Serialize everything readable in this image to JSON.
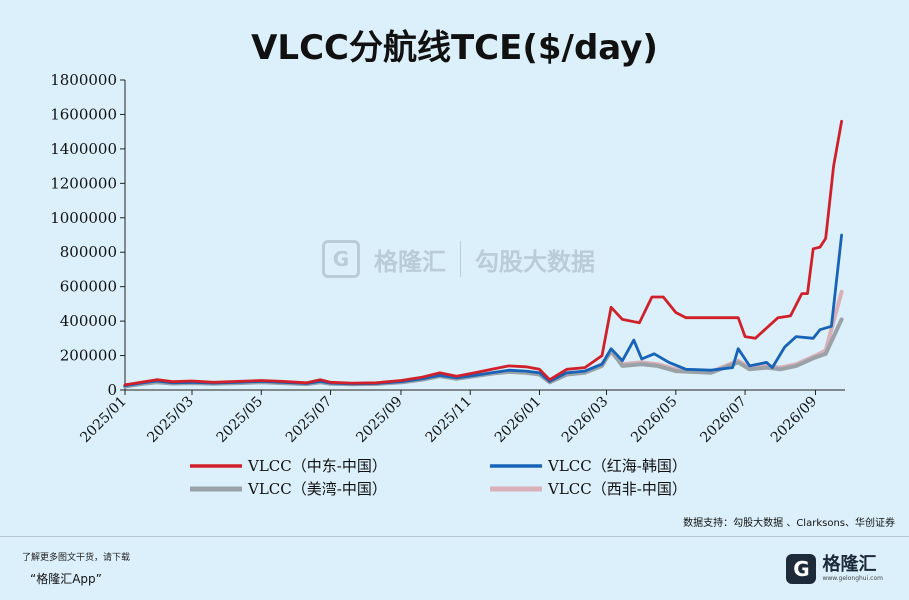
{
  "title": "VLCC分航线TCE($/day)",
  "source": "数据支持：勾股大数据 、Clarksons、华创证券",
  "footer": {
    "note": "了解更多图文干货，请下载",
    "app": "“格隆汇App”",
    "logo_cn": "格隆汇",
    "logo_en": "www.gelonghui.com"
  },
  "watermark": {
    "brand1": "格隆汇",
    "brand2": "勾股大数据"
  },
  "chart_data": {
    "type": "line",
    "title": "VLCC分航线TCE($/day)",
    "ylim": [
      0,
      1800000
    ],
    "yticks": [
      0,
      200000,
      400000,
      600000,
      800000,
      1000000,
      1200000,
      1400000,
      1600000,
      1800000
    ],
    "xlim": [
      "2025-01-01",
      "2026-09-27"
    ],
    "xticks": [
      "2025/01",
      "2025/03",
      "2025/05",
      "2025/07",
      "2025/09",
      "2025/11",
      "2026/01",
      "2026/03",
      "2026/05",
      "2026/07",
      "2026/09"
    ],
    "xtick_dates": [
      "2025-01-01",
      "2025-03-01",
      "2025-05-01",
      "2025-07-01",
      "2025-09-01",
      "2025-11-01",
      "2026-01-01",
      "2026-03-01",
      "2026-05-01",
      "2026-07-01",
      "2026-09-01"
    ],
    "grid": false,
    "legend_position": "bottom",
    "series": [
      {
        "name": "VLCC（中东-中国）",
        "color": "#d0202a",
        "points": [
          [
            "2025-01-01",
            30000
          ],
          [
            "2025-01-15",
            45000
          ],
          [
            "2025-01-29",
            60000
          ],
          [
            "2025-02-12",
            48000
          ],
          [
            "2025-03-01",
            52000
          ],
          [
            "2025-03-20",
            45000
          ],
          [
            "2025-04-10",
            50000
          ],
          [
            "2025-05-01",
            55000
          ],
          [
            "2025-05-20",
            50000
          ],
          [
            "2025-06-10",
            42000
          ],
          [
            "2025-06-22",
            60000
          ],
          [
            "2025-07-01",
            45000
          ],
          [
            "2025-07-20",
            40000
          ],
          [
            "2025-08-10",
            42000
          ],
          [
            "2025-09-01",
            55000
          ],
          [
            "2025-09-20",
            75000
          ],
          [
            "2025-10-05",
            100000
          ],
          [
            "2025-10-20",
            80000
          ],
          [
            "2025-11-05",
            100000
          ],
          [
            "2025-11-20",
            120000
          ],
          [
            "2025-12-05",
            140000
          ],
          [
            "2025-12-20",
            135000
          ],
          [
            "2026-01-01",
            120000
          ],
          [
            "2026-01-10",
            60000
          ],
          [
            "2026-01-25",
            120000
          ],
          [
            "2026-02-10",
            130000
          ],
          [
            "2026-02-25",
            200000
          ],
          [
            "2026-03-05",
            480000
          ],
          [
            "2026-03-15",
            410000
          ],
          [
            "2026-03-30",
            390000
          ],
          [
            "2026-04-10",
            540000
          ],
          [
            "2026-04-20",
            540000
          ],
          [
            "2026-05-01",
            450000
          ],
          [
            "2026-05-10",
            420000
          ],
          [
            "2026-06-01",
            420000
          ],
          [
            "2026-06-25",
            420000
          ],
          [
            "2026-07-01",
            310000
          ],
          [
            "2026-07-10",
            300000
          ],
          [
            "2026-07-20",
            360000
          ],
          [
            "2026-07-30",
            420000
          ],
          [
            "2026-08-10",
            430000
          ],
          [
            "2026-08-20",
            560000
          ],
          [
            "2026-08-25",
            560000
          ],
          [
            "2026-08-30",
            820000
          ],
          [
            "2026-09-05",
            830000
          ],
          [
            "2026-09-10",
            880000
          ],
          [
            "2026-09-17",
            1300000
          ],
          [
            "2026-09-24",
            1560000
          ]
        ]
      },
      {
        "name": "VLCC（红海-韩国）",
        "color": "#1763b8",
        "points": [
          [
            "2025-01-01",
            25000
          ],
          [
            "2025-01-15",
            40000
          ],
          [
            "2025-01-29",
            52000
          ],
          [
            "2025-02-12",
            42000
          ],
          [
            "2025-03-01",
            45000
          ],
          [
            "2025-03-20",
            40000
          ],
          [
            "2025-04-10",
            45000
          ],
          [
            "2025-05-01",
            50000
          ],
          [
            "2025-05-20",
            45000
          ],
          [
            "2025-06-10",
            38000
          ],
          [
            "2025-06-22",
            50000
          ],
          [
            "2025-07-01",
            40000
          ],
          [
            "2025-07-20",
            36000
          ],
          [
            "2025-08-10",
            38000
          ],
          [
            "2025-09-01",
            48000
          ],
          [
            "2025-09-20",
            65000
          ],
          [
            "2025-10-05",
            85000
          ],
          [
            "2025-10-20",
            70000
          ],
          [
            "2025-11-05",
            85000
          ],
          [
            "2025-11-20",
            100000
          ],
          [
            "2025-12-05",
            115000
          ],
          [
            "2025-12-20",
            110000
          ],
          [
            "2026-01-01",
            100000
          ],
          [
            "2026-01-10",
            50000
          ],
          [
            "2026-01-25",
            100000
          ],
          [
            "2026-02-10",
            110000
          ],
          [
            "2026-02-25",
            150000
          ],
          [
            "2026-03-05",
            240000
          ],
          [
            "2026-03-15",
            170000
          ],
          [
            "2026-03-25",
            290000
          ],
          [
            "2026-04-01",
            180000
          ],
          [
            "2026-04-12",
            210000
          ],
          [
            "2026-04-25",
            160000
          ],
          [
            "2026-05-10",
            120000
          ],
          [
            "2026-06-01",
            115000
          ],
          [
            "2026-06-20",
            130000
          ],
          [
            "2026-06-25",
            240000
          ],
          [
            "2026-07-05",
            140000
          ],
          [
            "2026-07-20",
            160000
          ],
          [
            "2026-07-25",
            130000
          ],
          [
            "2026-08-05",
            250000
          ],
          [
            "2026-08-15",
            310000
          ],
          [
            "2026-08-30",
            300000
          ],
          [
            "2026-09-05",
            350000
          ],
          [
            "2026-09-15",
            370000
          ],
          [
            "2026-09-24",
            900000
          ]
        ]
      },
      {
        "name": "VLCC（美湾-中国）",
        "color": "#9aa2a8",
        "points": [
          [
            "2025-01-01",
            20000
          ],
          [
            "2025-01-15",
            35000
          ],
          [
            "2025-01-29",
            45000
          ],
          [
            "2025-02-12",
            38000
          ],
          [
            "2025-03-01",
            40000
          ],
          [
            "2025-03-20",
            36000
          ],
          [
            "2025-04-10",
            40000
          ],
          [
            "2025-05-01",
            45000
          ],
          [
            "2025-05-20",
            40000
          ],
          [
            "2025-06-10",
            34000
          ],
          [
            "2025-06-22",
            45000
          ],
          [
            "2025-07-01",
            36000
          ],
          [
            "2025-07-20",
            33000
          ],
          [
            "2025-08-10",
            35000
          ],
          [
            "2025-09-01",
            44000
          ],
          [
            "2025-09-20",
            60000
          ],
          [
            "2025-10-05",
            80000
          ],
          [
            "2025-10-20",
            65000
          ],
          [
            "2025-11-05",
            80000
          ],
          [
            "2025-11-20",
            95000
          ],
          [
            "2025-12-05",
            105000
          ],
          [
            "2025-12-20",
            100000
          ],
          [
            "2026-01-01",
            90000
          ],
          [
            "2026-01-10",
            45000
          ],
          [
            "2026-01-25",
            90000
          ],
          [
            "2026-02-10",
            100000
          ],
          [
            "2026-02-25",
            140000
          ],
          [
            "2026-03-05",
            230000
          ],
          [
            "2026-03-15",
            140000
          ],
          [
            "2026-04-01",
            150000
          ],
          [
            "2026-04-15",
            140000
          ],
          [
            "2026-05-01",
            110000
          ],
          [
            "2026-06-01",
            100000
          ],
          [
            "2026-06-25",
            160000
          ],
          [
            "2026-07-05",
            120000
          ],
          [
            "2026-07-20",
            130000
          ],
          [
            "2026-08-01",
            120000
          ],
          [
            "2026-08-15",
            140000
          ],
          [
            "2026-09-01",
            190000
          ],
          [
            "2026-09-10",
            210000
          ],
          [
            "2026-09-24",
            410000
          ]
        ]
      },
      {
        "name": "VLCC（西非-中国）",
        "color": "#d9b0b8",
        "points": [
          [
            "2025-01-01",
            22000
          ],
          [
            "2025-01-15",
            38000
          ],
          [
            "2025-01-29",
            48000
          ],
          [
            "2025-02-12",
            40000
          ],
          [
            "2025-03-01",
            43000
          ],
          [
            "2025-03-20",
            38000
          ],
          [
            "2025-04-10",
            42000
          ],
          [
            "2025-05-01",
            47000
          ],
          [
            "2025-05-20",
            42000
          ],
          [
            "2025-06-10",
            36000
          ],
          [
            "2025-06-22",
            48000
          ],
          [
            "2025-07-01",
            38000
          ],
          [
            "2025-07-20",
            35000
          ],
          [
            "2025-08-10",
            37000
          ],
          [
            "2025-09-01",
            46000
          ],
          [
            "2025-09-20",
            63000
          ],
          [
            "2025-10-05",
            82000
          ],
          [
            "2025-10-20",
            68000
          ],
          [
            "2025-11-05",
            82000
          ],
          [
            "2025-11-20",
            98000
          ],
          [
            "2025-12-05",
            108000
          ],
          [
            "2025-12-20",
            103000
          ],
          [
            "2026-01-01",
            93000
          ],
          [
            "2026-01-10",
            48000
          ],
          [
            "2026-01-25",
            93000
          ],
          [
            "2026-02-10",
            105000
          ],
          [
            "2026-02-25",
            150000
          ],
          [
            "2026-03-05",
            220000
          ],
          [
            "2026-03-15",
            150000
          ],
          [
            "2026-04-01",
            160000
          ],
          [
            "2026-04-15",
            150000
          ],
          [
            "2026-05-01",
            120000
          ],
          [
            "2026-06-01",
            105000
          ],
          [
            "2026-06-25",
            170000
          ],
          [
            "2026-07-05",
            130000
          ],
          [
            "2026-07-20",
            140000
          ],
          [
            "2026-08-01",
            130000
          ],
          [
            "2026-08-15",
            150000
          ],
          [
            "2026-09-01",
            200000
          ],
          [
            "2026-09-10",
            230000
          ],
          [
            "2026-09-24",
            570000
          ]
        ]
      }
    ]
  }
}
